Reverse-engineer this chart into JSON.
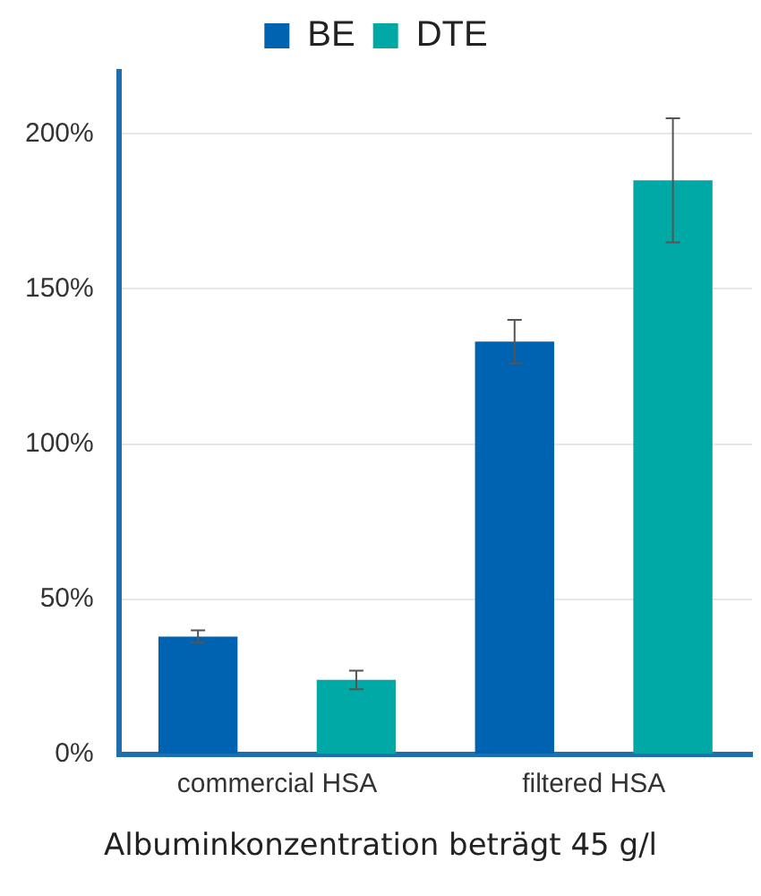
{
  "chart_data": {
    "type": "bar",
    "xlabel": "Albuminkonzentration beträgt 45 g/l",
    "categories": [
      "commercial HSA",
      "filtered HSA"
    ],
    "series": [
      {
        "name": "BE",
        "color": "#0063b1",
        "values": [
          38,
          133
        ],
        "errors": [
          2,
          7
        ]
      },
      {
        "name": "DTE",
        "color": "#00a9a5",
        "values": [
          24,
          185
        ],
        "errors": [
          3,
          20
        ]
      }
    ],
    "ylim": [
      0,
      220
    ],
    "yticks": [
      {
        "value": 0,
        "label": "0%"
      },
      {
        "value": 50,
        "label": "50%"
      },
      {
        "value": 100,
        "label": "100%"
      },
      {
        "value": 150,
        "label": "150%"
      },
      {
        "value": 200,
        "label": "200%"
      }
    ],
    "grid": "y",
    "legend": "top"
  }
}
